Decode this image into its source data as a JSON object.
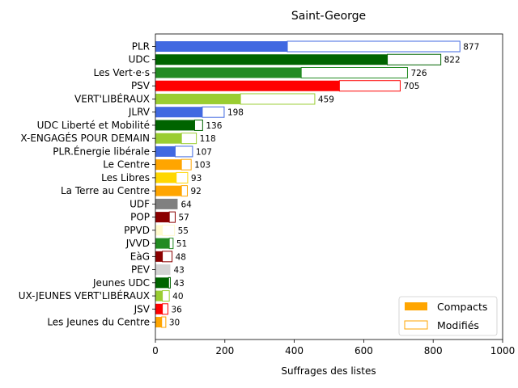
{
  "chart_data": {
    "type": "bar",
    "orientation": "horizontal",
    "stacked": true,
    "title": "Saint-George",
    "xlabel": "Suffrages des listes",
    "ylabel": "",
    "xlim": [
      0,
      1000
    ],
    "xticks": [
      0,
      200,
      400,
      600,
      800,
      1000
    ],
    "grid": false,
    "legend_position": "lower right",
    "legend": [
      {
        "name": "Compacts",
        "style": "filled",
        "color": "#ffa500"
      },
      {
        "name": "Modifiés",
        "style": "outline",
        "color": "#ffa500"
      }
    ],
    "categories": [
      "PLR",
      "UDC",
      "Les Vert·e·s",
      "PSV",
      "VERT'LIBÉRAUX",
      "JLRV",
      "UDC Liberté et Mobilité",
      "X-ENGAGÉS POUR DEMAIN",
      "PLR.Énergie libérale",
      "Le Centre",
      "Les Libres",
      "La Terre au Centre",
      "UDF",
      "POP",
      "PPVD",
      "JVVD",
      "EàG",
      "PEV",
      "Jeunes UDC",
      "UX-JEUNES VERT'LIBÉRAUX",
      "JSV",
      "Les Jeunes du Centre"
    ],
    "colors": [
      "#4169e1",
      "#006400",
      "#228b22",
      "#ff0000",
      "#9acd32",
      "#4169e1",
      "#006400",
      "#9acd32",
      "#4169e1",
      "#ffa500",
      "#ffd700",
      "#ffa500",
      "#808080",
      "#8b0000",
      "#fffacd",
      "#228b22",
      "#8b0000",
      "#d3d3d3",
      "#006400",
      "#9acd32",
      "#ff0000",
      "#ffa500"
    ],
    "series": [
      {
        "name": "Compacts",
        "values": [
          380,
          668,
          420,
          530,
          245,
          135,
          113,
          75,
          57,
          75,
          60,
          75,
          64,
          40,
          20,
          40,
          20,
          43,
          38,
          20,
          20,
          18
        ]
      },
      {
        "name": "Modifiés",
        "values": [
          497,
          154,
          306,
          175,
          214,
          63,
          23,
          43,
          50,
          28,
          33,
          17,
          0,
          17,
          35,
          11,
          28,
          0,
          5,
          20,
          16,
          12
        ]
      }
    ],
    "totals": [
      877,
      822,
      726,
      705,
      459,
      198,
      136,
      118,
      107,
      103,
      93,
      92,
      64,
      57,
      55,
      51,
      48,
      43,
      43,
      40,
      36,
      30
    ]
  }
}
